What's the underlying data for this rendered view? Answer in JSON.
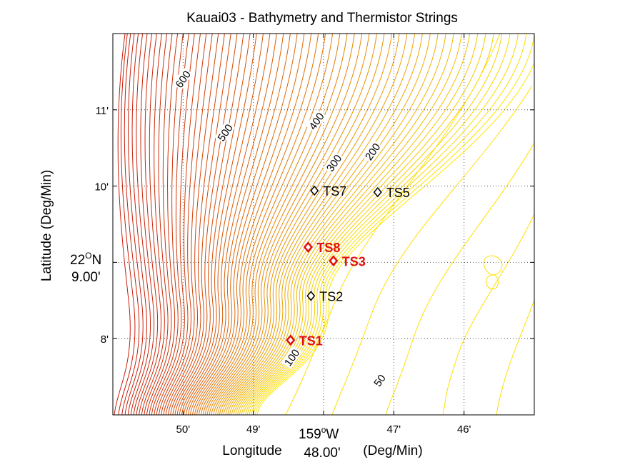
{
  "chart_data": {
    "type": "contour",
    "title": "Kauai03 - Bathymetry and Thermistor Strings",
    "xlabel": "Longitude",
    "xlabel_units": "(Deg/Min)",
    "ylabel": "Latitude (Deg/Min)",
    "x_ref": {
      "deg": "159",
      "sup": "o",
      "hemi": "W",
      "min": "48.00'"
    },
    "y_ref": {
      "deg": "22",
      "sup": "O",
      "hemi": "N",
      "min": "9.00'"
    },
    "xlim": [
      -51.0,
      -45.0
    ],
    "ylim": [
      7.0,
      12.0
    ],
    "x_ticks": [
      {
        "value": -50,
        "label": "50'"
      },
      {
        "value": -49,
        "label": "49'"
      },
      {
        "value": -47,
        "label": "47'"
      },
      {
        "value": -46,
        "label": "46'"
      }
    ],
    "y_ticks": [
      {
        "value": 8,
        "label": "8'"
      },
      {
        "value": 10,
        "label": "10'"
      },
      {
        "value": 11,
        "label": "11'"
      }
    ],
    "grid": true,
    "contour_labels": [
      {
        "text": "600",
        "x": -50.0,
        "y": 11.4
      },
      {
        "text": "500",
        "x": -49.4,
        "y": 10.7
      },
      {
        "text": "400",
        "x": -48.1,
        "y": 10.85
      },
      {
        "text": "300",
        "x": -47.85,
        "y": 10.3
      },
      {
        "text": "200",
        "x": -47.3,
        "y": 10.45
      },
      {
        "text": "100",
        "x": -48.45,
        "y": 7.75
      },
      {
        "text": "50",
        "x": -47.2,
        "y": 7.45
      }
    ],
    "stations": [
      {
        "name": "TS7",
        "x": -48.13,
        "y": 9.94,
        "color": "#000000",
        "bold": false
      },
      {
        "name": "TS5",
        "x": -47.23,
        "y": 9.92,
        "color": "#000000",
        "bold": false
      },
      {
        "name": "TS8",
        "x": -48.22,
        "y": 9.2,
        "color": "#e01010",
        "bold": true
      },
      {
        "name": "TS3",
        "x": -47.86,
        "y": 9.02,
        "color": "#e01010",
        "bold": true
      },
      {
        "name": "TS2",
        "x": -48.18,
        "y": 8.56,
        "color": "#000000",
        "bold": false
      },
      {
        "name": "TS1",
        "x": -48.47,
        "y": 7.98,
        "color": "#e01010",
        "bold": true
      }
    ],
    "colors": {
      "deep": "#c81e0a",
      "shallow": "#ffe800",
      "grid": "#555555"
    }
  }
}
